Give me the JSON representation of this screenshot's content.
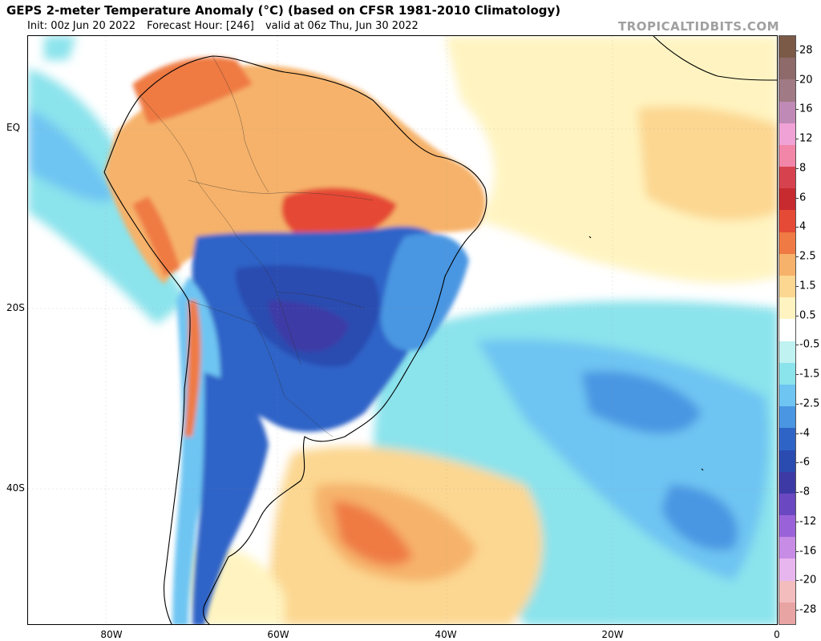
{
  "header": {
    "title": "GEPS 2-meter Temperature Anomaly (°C) (based on CFSR 1981-2010 Climatology)",
    "init": "Init: 00z Jun 20 2022",
    "forecast_hour": "Forecast Hour: [246]",
    "valid": "valid at 06z Thu, Jun 30 2022",
    "brand": "TROPICALTIDBITS.COM"
  },
  "axes": {
    "lat_labels": [
      "EQ",
      "20S",
      "40S"
    ],
    "lon_labels": [
      "80W",
      "60W",
      "40W",
      "20W",
      "0"
    ]
  },
  "colorbar": {
    "labels": [
      "28",
      "20",
      "16",
      "12",
      "8",
      "6",
      "4",
      "2.5",
      "1.5",
      "0.5",
      "-0.5",
      "-1.5",
      "-2.5",
      "-4",
      "-6",
      "-8",
      "-12",
      "-16",
      "-20",
      "-28"
    ],
    "colors": [
      "#7b5a47",
      "#8e6a6a",
      "#a07a84",
      "#c08ab6",
      "#f0a2d6",
      "#f286a8",
      "#d6434e",
      "#c72b2f",
      "#e54a36",
      "#ef7a43",
      "#f6b26b",
      "#fcd791",
      "#fff4c1",
      "#ffffff",
      "#bff2f0",
      "#8be3ec",
      "#6ec5f2",
      "#4a96e2",
      "#2f64c7",
      "#2a4bb0",
      "#3d3aa6",
      "#6a48c2",
      "#9a62d8",
      "#c68ce6",
      "#e8b6ee",
      "#f3bdbd",
      "#e8a3a3"
    ]
  }
}
